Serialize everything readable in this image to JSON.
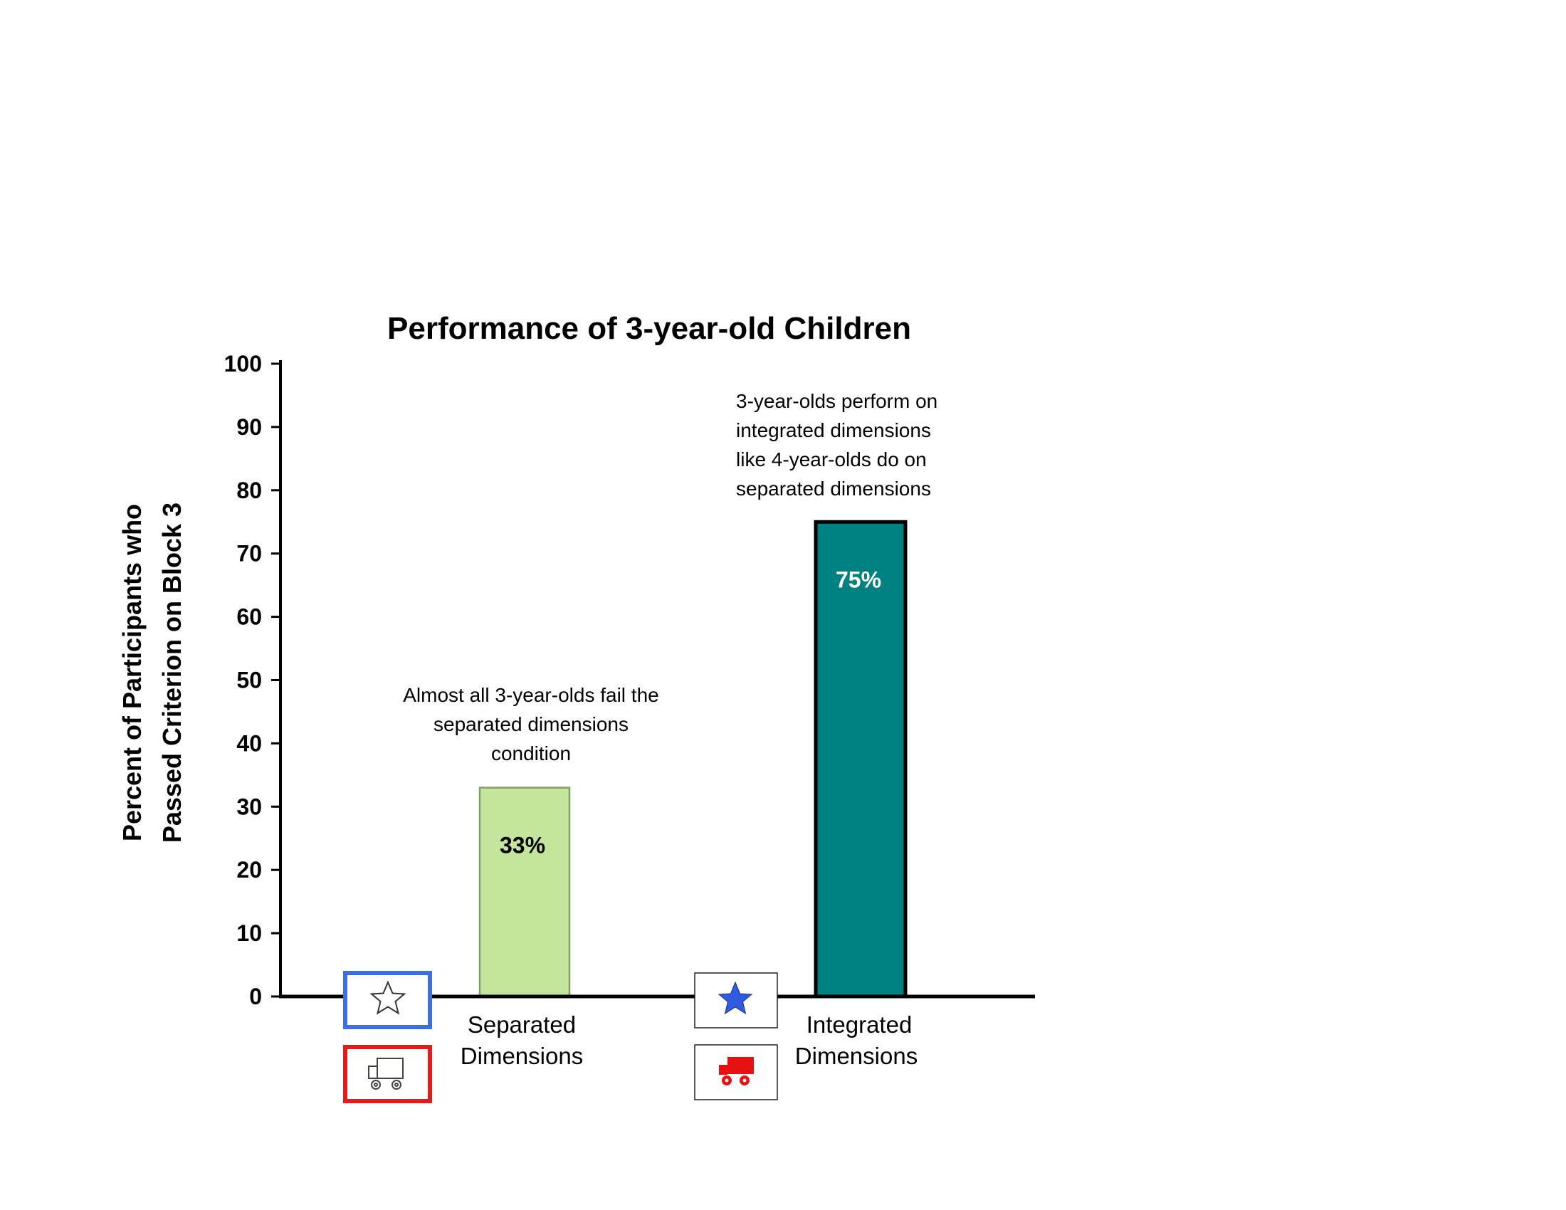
{
  "chart_data": {
    "type": "bar",
    "title": "Performance of 3-year-old Children",
    "ylabel_lines": [
      "Percent of Participants who",
      "Passed Criterion on Block 3"
    ],
    "xlabel": "",
    "ylim": [
      0,
      100
    ],
    "yticks": [
      0,
      10,
      20,
      30,
      40,
      50,
      60,
      70,
      80,
      90,
      100
    ],
    "grid": false,
    "legend": "none",
    "categories": [
      {
        "label_lines": [
          "Separated",
          "Dimensions"
        ]
      },
      {
        "label_lines": [
          "Integrated",
          "Dimensions"
        ]
      }
    ],
    "values": [
      33,
      75
    ],
    "data_labels": [
      "33%",
      "75%"
    ],
    "colors": {
      "bar_fills": [
        "#c3e59c",
        "#008080"
      ],
      "bar_strokes": [
        "#7fa35f",
        "#000000"
      ],
      "data_label_colors": [
        "#000000",
        "#ffffff"
      ],
      "sep_star_frame": "#3d6fe0",
      "sep_truck_frame": "#e01c1c",
      "int_star": "#2f5be0",
      "int_truck": "#e81010"
    },
    "annotations": [
      {
        "lines": [
          "Almost all 3-year-olds fail the",
          "separated dimensions",
          "condition"
        ]
      },
      {
        "lines": [
          "3-year-olds perform on",
          "integrated dimensions",
          "like 4-year-olds do on",
          "separated dimensions"
        ]
      }
    ],
    "stimulus_icons": [
      {
        "category": 0,
        "icons": [
          "outline-star-icon",
          "outline-truck-icon"
        ]
      },
      {
        "category": 1,
        "icons": [
          "blue-star-icon",
          "red-truck-icon"
        ]
      }
    ]
  }
}
